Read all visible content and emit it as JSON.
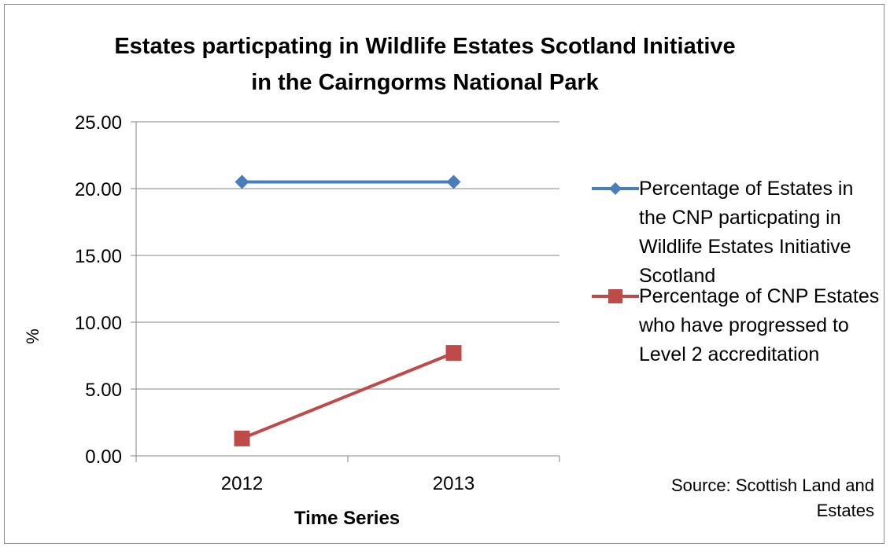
{
  "chart_data": {
    "type": "line",
    "title_lines": [
      "Estates particpating in Wildlife Estates Scotland Initiative",
      "in the Cairngorms National Park"
    ],
    "xlabel": "Time Series",
    "ylabel": "%",
    "categories": [
      "2012",
      "2013"
    ],
    "ylim": [
      0,
      25
    ],
    "yticks": [
      "0.00",
      "5.00",
      "10.00",
      "15.00",
      "20.00",
      "25.00"
    ],
    "grid": true,
    "legend_position": "right",
    "series": [
      {
        "name": "Percentage of Estates in the CNP particpating in Wildlife Estates Initiative Scotland",
        "values": [
          20.5,
          20.5
        ],
        "color": "#4a7ebb",
        "marker": "diamond"
      },
      {
        "name": "Percentage of CNP Estates who have progressed to Level 2 accreditation",
        "values": [
          1.3,
          7.7
        ],
        "color": "#be4b48",
        "marker": "square"
      }
    ],
    "annotation": "Source: Scottish Land and Estates"
  }
}
